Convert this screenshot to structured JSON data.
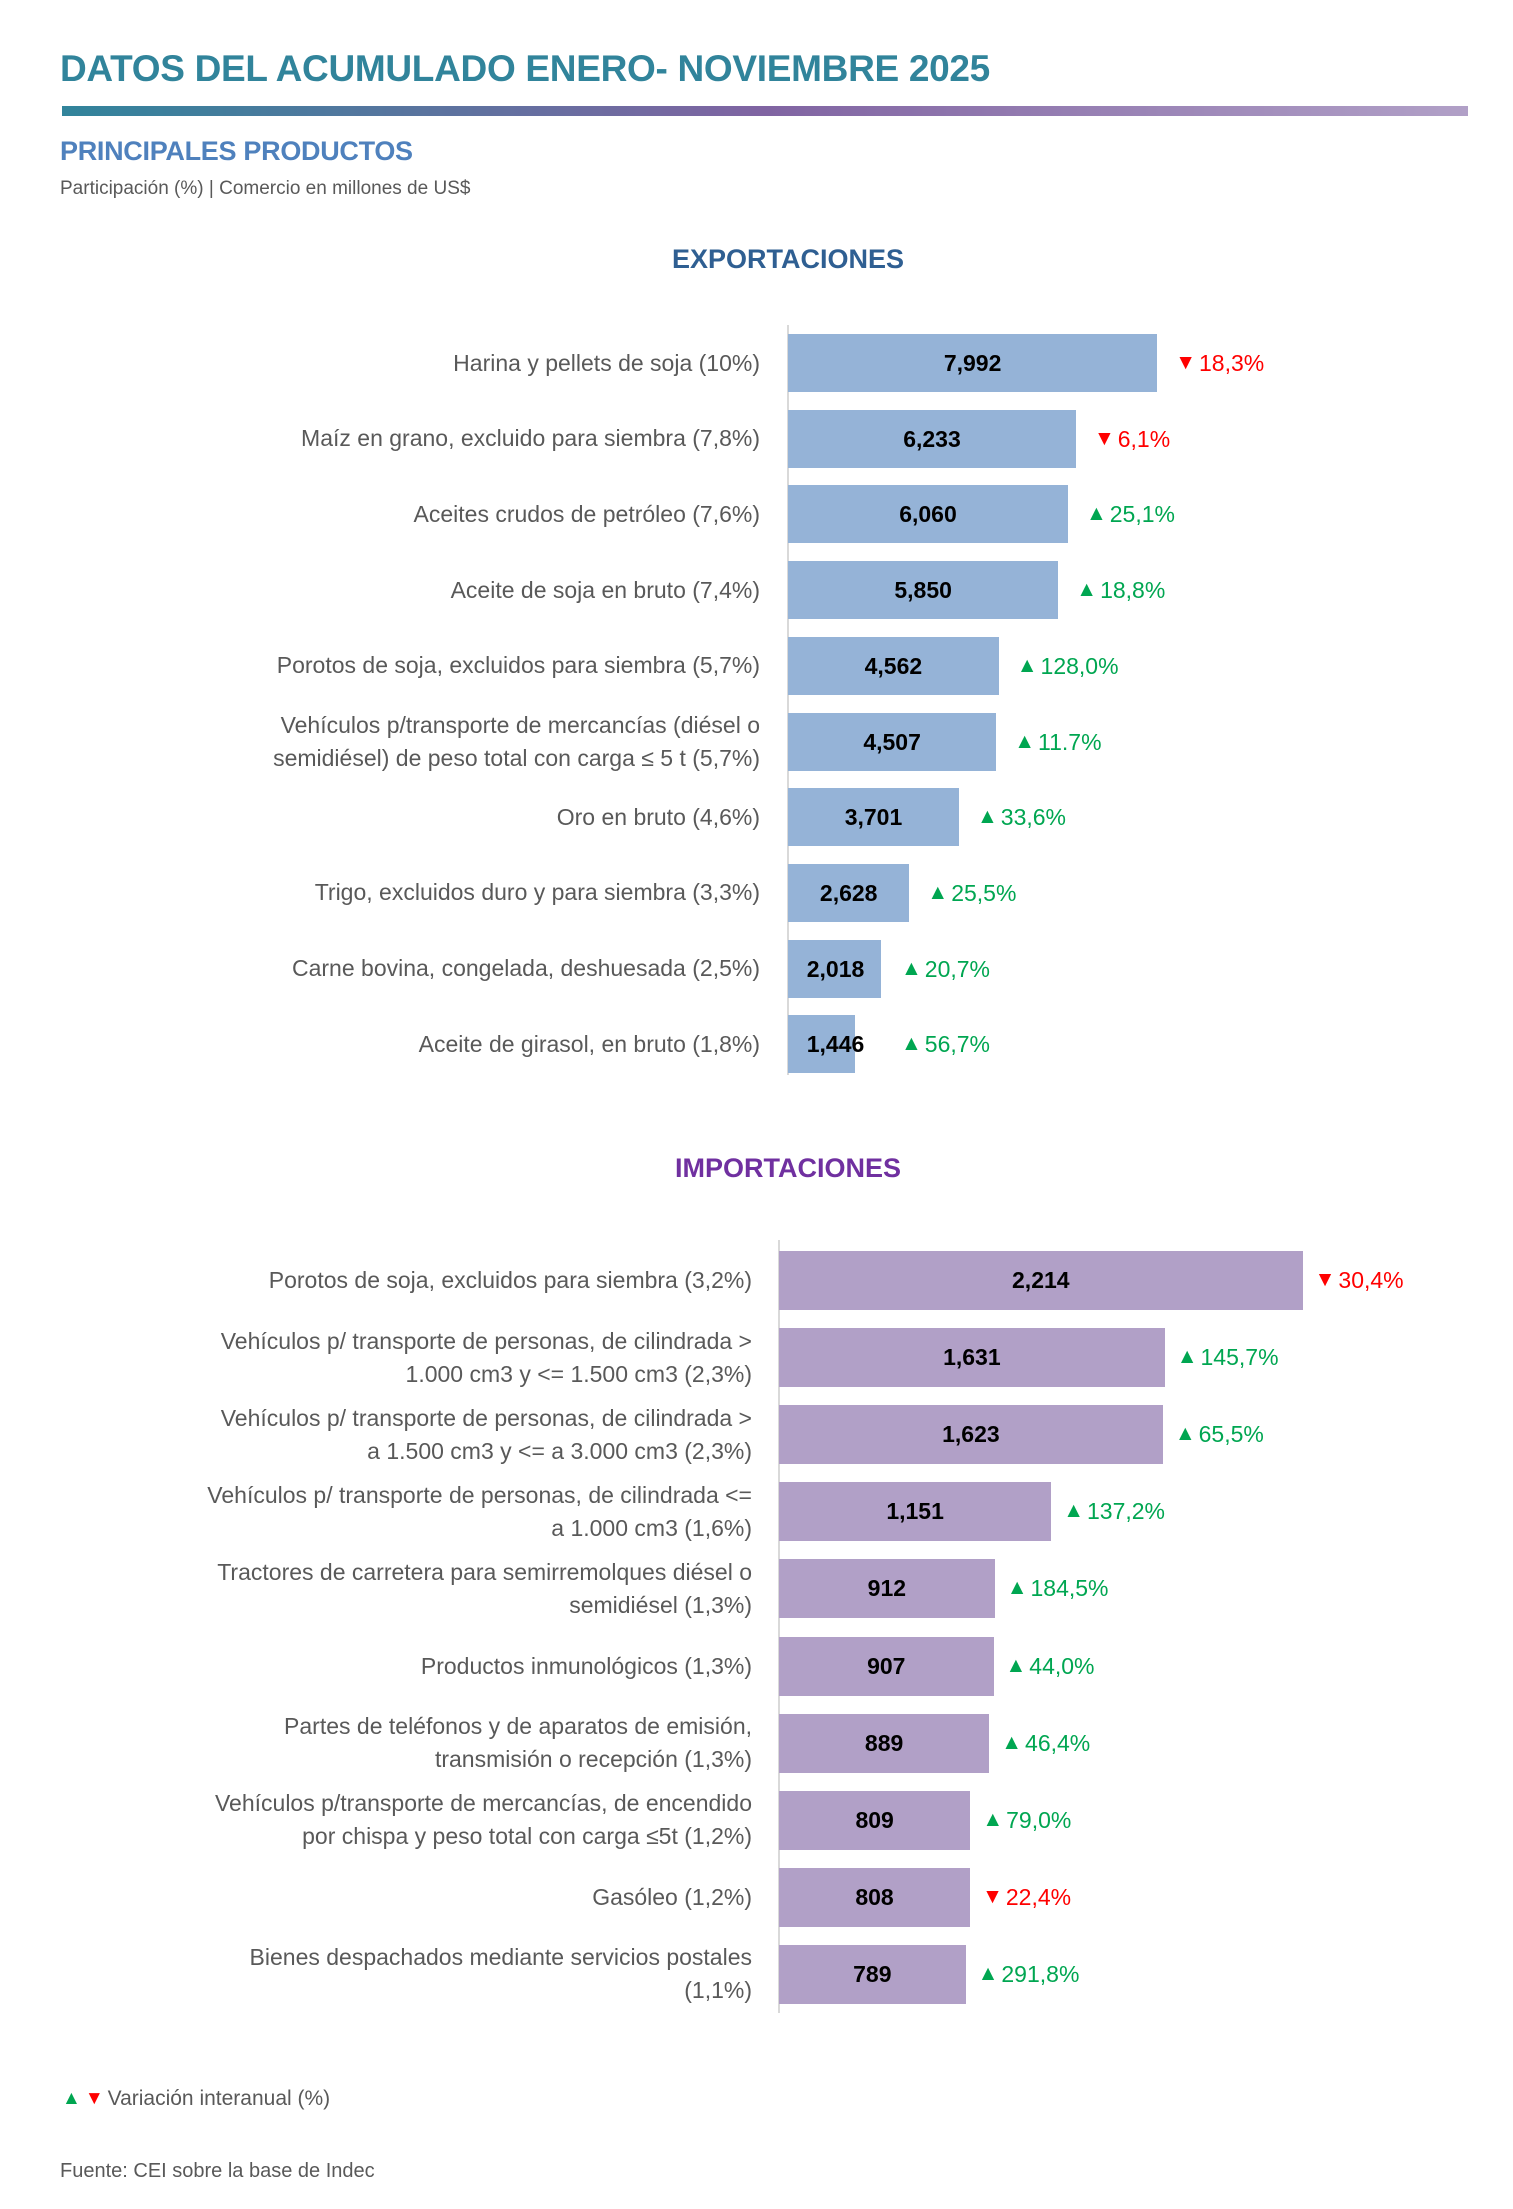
{
  "header": {
    "title": "DATOS DEL ACUMULADO ENERO- NOVIEMBRE 2025",
    "subtitle": "PRINCIPALES PRODUCTOS",
    "caption": "Participación (%) | Comercio en millones de US$"
  },
  "colors": {
    "title": "#31849B",
    "exports_bar": "#95B3D7",
    "imports_bar": "#B1A0C7",
    "up": "#00A651",
    "down": "#FF0000"
  },
  "chart_data": [
    {
      "type": "bar",
      "orientation": "horizontal",
      "title": "EXPORTACIONES",
      "unit": "millones de US$",
      "categories": [
        "Harina y pellets de soja (10%)",
        "Maíz en grano, excluido para siembra (7,8%)",
        "Aceites crudos de petróleo (7,6%)",
        "Aceite de soja en bruto (7,4%)",
        "Porotos de soja, excluidos para siembra (5,7%)",
        "Vehículos p/transporte de mercancías (diésel o|semidiésel) de peso total con carga ≤ 5 t (5,7%)",
        "Oro en bruto (4,6%)",
        "Trigo, excluidos duro y para siembra (3,3%)",
        "Carne bovina, congelada, deshuesada (2,5%)",
        "Aceite de girasol, en bruto (1,8%)"
      ],
      "values": [
        7992,
        6233,
        6060,
        5850,
        4562,
        4507,
        3701,
        2628,
        2018,
        1446
      ],
      "value_labels": [
        "7,992",
        "6,233",
        "6,060",
        "5,850",
        "4,562",
        "4,507",
        "3,701",
        "2,628",
        "2,018",
        "1,446"
      ],
      "change": [
        {
          "dir": "down",
          "label": "18,3%"
        },
        {
          "dir": "down",
          "label": "6,1%"
        },
        {
          "dir": "up",
          "label": "25,1%"
        },
        {
          "dir": "up",
          "label": "18,8%"
        },
        {
          "dir": "up",
          "label": "128,0%"
        },
        {
          "dir": "up",
          "label": "11.7%"
        },
        {
          "dir": "up",
          "label": "33,6%"
        },
        {
          "dir": "up",
          "label": "25,5%"
        },
        {
          "dir": "up",
          "label": "20,7%"
        },
        {
          "dir": "up",
          "label": "56,7%"
        }
      ]
    },
    {
      "type": "bar",
      "orientation": "horizontal",
      "title": "IMPORTACIONES",
      "unit": "millones de US$",
      "categories": [
        "Porotos de soja, excluidos para siembra (3,2%)",
        "Vehículos p/ transporte de personas, de cilindrada  >|1.000 cm3 y <= 1.500 cm3 (2,3%)",
        "Vehículos p/ transporte de personas, de cilindrada  >|a 1.500 cm3 y <= a 3.000 cm3 (2,3%)",
        "Vehículos p/ transporte de personas, de cilindrada  <=|a 1.000 cm3 (1,6%)",
        "Tractores de carretera para semirremolques diésel o|semidiésel (1,3%)",
        "Productos inmunológicos (1,3%)",
        "Partes de teléfonos y de aparatos de emisión,|transmisión o recepción (1,3%)",
        "Vehículos p/transporte de mercancías, de encendido|por chispa y peso total con carga ≤5t (1,2%)",
        "Gasóleo (1,2%)",
        "Bienes despachados mediante servicios postales|(1,1%)"
      ],
      "values": [
        2214,
        1631,
        1623,
        1151,
        912,
        907,
        889,
        809,
        808,
        789
      ],
      "value_labels": [
        "2,214",
        "1,631",
        "1,623",
        "1,151",
        "912",
        "907",
        "889",
        "809",
        "808",
        "789"
      ],
      "change": [
        {
          "dir": "down",
          "label": "30,4%"
        },
        {
          "dir": "up",
          "label": "145,7%"
        },
        {
          "dir": "up",
          "label": "65,5%"
        },
        {
          "dir": "up",
          "label": "137,2%"
        },
        {
          "dir": "up",
          "label": "184,5%"
        },
        {
          "dir": "up",
          "label": "44,0%"
        },
        {
          "dir": "up",
          "label": "46,4%"
        },
        {
          "dir": "up",
          "label": "79,0%"
        },
        {
          "dir": "down",
          "label": "22,4%"
        },
        {
          "dir": "up",
          "label": "291,8%"
        }
      ]
    }
  ],
  "icons": {
    "up": "▲",
    "down": "▼"
  },
  "footer": {
    "legend_label": "Variación interanual (%)",
    "source": "Fuente: CEI sobre la base de Indec"
  }
}
